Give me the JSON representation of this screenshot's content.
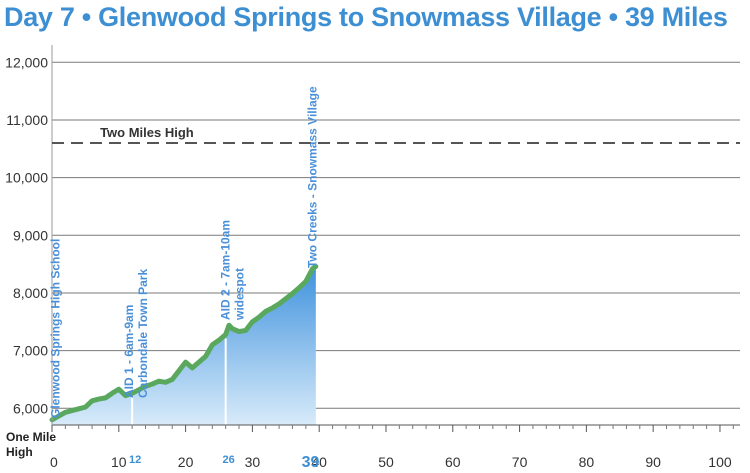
{
  "colors": {
    "title": "#3d8fd3",
    "line": "#5aa85e",
    "area_top": "#3f92dd",
    "area_bottom": "#d8ebfa",
    "annotation": "#4a90d9",
    "reference": "#555555"
  },
  "chart_data": {
    "type": "area",
    "title": "Day 7 • Glenwood Springs to Snowmass Village • 39 Miles",
    "xlabel": "",
    "ylabel": "",
    "xlim": [
      0,
      103
    ],
    "ylim": [
      5710,
      12300
    ],
    "grid": true,
    "x_ticks": [
      0,
      10,
      20,
      30,
      40,
      50,
      60,
      70,
      80,
      90,
      100
    ],
    "x_tick_labels": [
      "0",
      "10",
      "20",
      "30",
      "40",
      "50",
      "60",
      "70",
      "80",
      "90",
      "100"
    ],
    "y_ticks": [
      6000,
      7000,
      8000,
      9000,
      10000,
      11000,
      12000
    ],
    "y_tick_labels": [
      "6,000",
      "7,000",
      "8,000",
      "9,000",
      "10,000",
      "11,000",
      "12,000"
    ],
    "baseline_label": [
      "One Mile",
      "High"
    ],
    "reference_lines": [
      {
        "label": "Two Miles High",
        "y": 10600
      }
    ],
    "x_markers": [
      {
        "x": 12,
        "label": "12"
      },
      {
        "x": 26,
        "label": "26"
      },
      {
        "x": 39,
        "label": "39"
      }
    ],
    "annotations": [
      {
        "x": 0.5,
        "lines": [
          "Glenwood Springs High School"
        ]
      },
      {
        "x": 11.5,
        "lines": [
          "AID 1 - 6am-9am",
          "Carbondale Town Park"
        ]
      },
      {
        "x": 26,
        "lines": [
          "AID 2 - 7am-10am",
          "widespot"
        ]
      },
      {
        "x": 39,
        "lines": [
          "Two Creeks - Snowmass Village"
        ]
      }
    ],
    "series": [
      {
        "x": [
          0,
          2,
          4,
          5,
          6,
          7,
          8,
          9,
          10,
          11,
          12,
          13,
          14,
          15,
          16,
          17,
          18,
          19,
          20,
          21,
          22,
          23,
          24,
          25,
          26,
          26.5,
          27,
          28,
          29,
          30,
          31,
          32,
          33,
          34,
          35,
          36,
          37,
          38,
          39,
          39.5
        ],
        "y": [
          5800,
          5930,
          5990,
          6020,
          6130,
          6160,
          6180,
          6260,
          6330,
          6220,
          6260,
          6320,
          6380,
          6420,
          6470,
          6450,
          6500,
          6650,
          6800,
          6700,
          6800,
          6900,
          7100,
          7180,
          7280,
          7440,
          7380,
          7330,
          7350,
          7500,
          7580,
          7680,
          7740,
          7810,
          7900,
          7990,
          8090,
          8200,
          8420,
          8460
        ]
      }
    ]
  }
}
